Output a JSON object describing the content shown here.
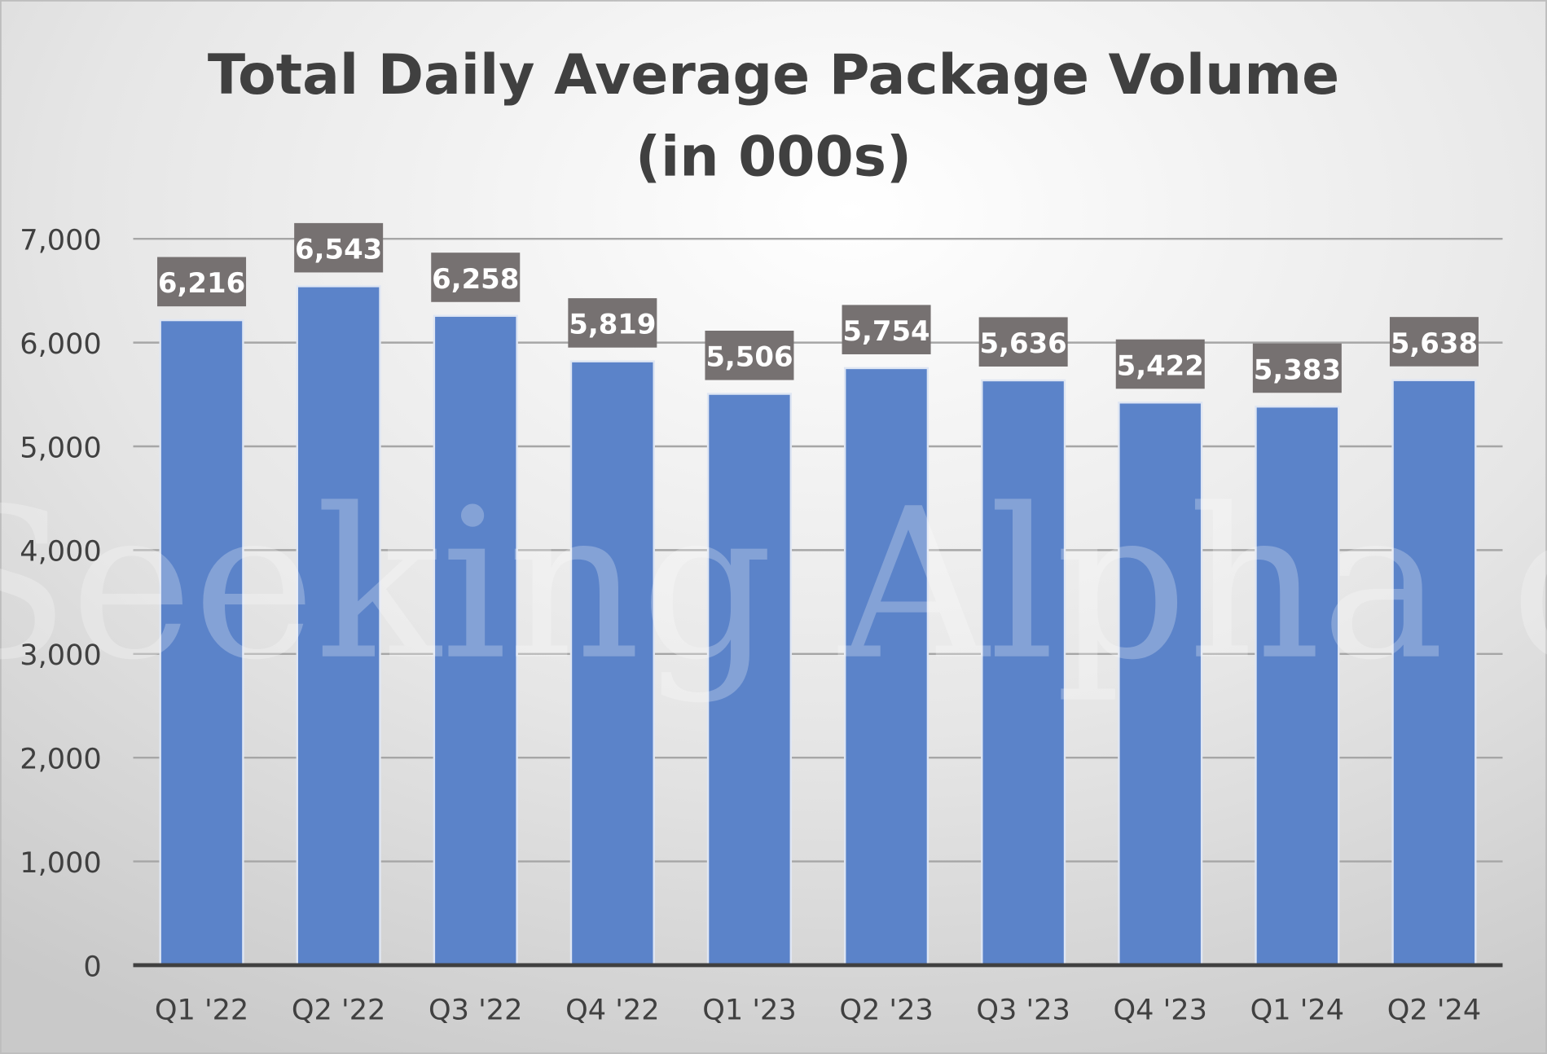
{
  "chart_data": {
    "type": "bar",
    "title": [
      "Total Daily Average Package Volume",
      "(in 000s)"
    ],
    "xlabel": "",
    "ylabel": "",
    "categories": [
      "Q1 '22",
      "Q2 '22",
      "Q3 '22",
      "Q4 '22",
      "Q1 '23",
      "Q2 '23",
      "Q3 '23",
      "Q4 '23",
      "Q1 '24",
      "Q2 '24"
    ],
    "values": [
      6216,
      6543,
      6258,
      5819,
      5506,
      5754,
      5636,
      5422,
      5383,
      5638
    ],
    "data_labels": [
      "6,216",
      "6,543",
      "6,258",
      "5,819",
      "5,506",
      "5,754",
      "5,636",
      "5,422",
      "5,383",
      "5,638"
    ],
    "ylim": [
      0,
      7000
    ],
    "yticks": [
      0,
      1000,
      2000,
      3000,
      4000,
      5000,
      6000,
      7000
    ],
    "ytick_labels": [
      "0",
      "1,000",
      "2,000",
      "3,000",
      "4,000",
      "5,000",
      "6,000",
      "7,000"
    ],
    "grid": true,
    "legend": "none",
    "colors": {
      "bar": "#5b83c9",
      "label_box": "#767171",
      "label_text": "#ffffff",
      "text": "#404040"
    },
    "watermark": "Seeking Alpha α"
  }
}
